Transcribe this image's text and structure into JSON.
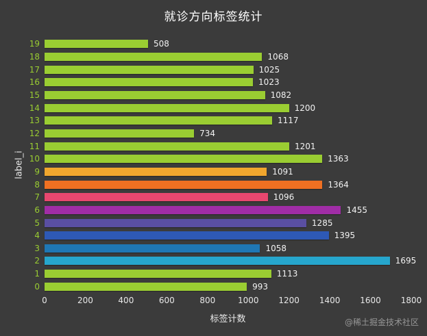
{
  "watermark": "@稀土掘金技术社区",
  "colors": {
    "background": "#3b3b3b",
    "title_text": "#ffffff",
    "tick_text": "#e8e8e8",
    "ytick_text": "#9acd32",
    "value_text": "#f2f2f2",
    "watermark_text": "#979797",
    "default_bar": "#9acd32"
  },
  "chart_data": {
    "type": "bar",
    "orientation": "horizontal",
    "title": "就诊方向标签统计",
    "xlabel": "标签计数",
    "ylabel": "label_i",
    "xlim": [
      0,
      1800
    ],
    "xticks": [
      0,
      200,
      400,
      600,
      800,
      1000,
      1200,
      1400,
      1600,
      1800
    ],
    "grid": false,
    "legend": "none",
    "categories": [
      0,
      1,
      2,
      3,
      4,
      5,
      6,
      7,
      8,
      9,
      10,
      11,
      12,
      13,
      14,
      15,
      16,
      17,
      18,
      19
    ],
    "values": [
      993,
      1113,
      1695,
      1058,
      1395,
      1285,
      1455,
      1096,
      1364,
      1091,
      1363,
      1201,
      734,
      1117,
      1200,
      1082,
      1023,
      1025,
      1068,
      508
    ],
    "bar_colors": [
      "#9acd32",
      "#9acd32",
      "#26a6cd",
      "#1f77b4",
      "#2e59b5",
      "#5a4fa2",
      "#a02da6",
      "#e8476f",
      "#f07022",
      "#f0a62e",
      "#9acd32",
      "#9acd32",
      "#9acd32",
      "#9acd32",
      "#9acd32",
      "#9acd32",
      "#9acd32",
      "#9acd32",
      "#9acd32",
      "#9acd32"
    ]
  }
}
